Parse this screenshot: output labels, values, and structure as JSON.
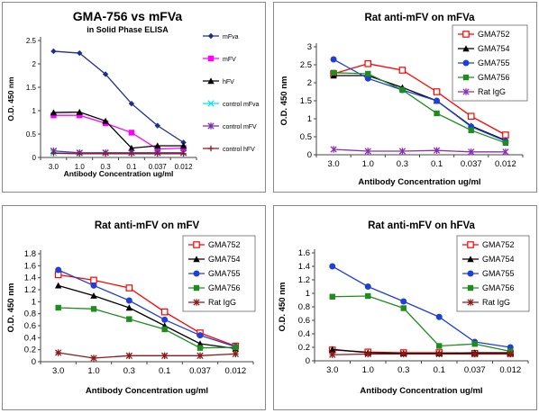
{
  "chart_data": [
    {
      "type": "line",
      "title": "GMA-756 vs mFVa",
      "subtitle": "in Solid Phase ELISA",
      "xlabel": "Antibody Concentration ug/ml",
      "ylabel": "O.D. 450 nm",
      "categories": [
        "3.0",
        "1.0",
        "0.3",
        "0.1",
        "0.037",
        "0.012"
      ],
      "ylim": [
        0,
        2.5
      ],
      "yticks": [
        "0",
        "0.5",
        "1",
        "1.5",
        "2",
        "2.5"
      ],
      "legend_position": "right",
      "series": [
        {
          "name": "mFva",
          "color": "#1f2f8c",
          "marker": "diamond",
          "values": [
            2.27,
            2.23,
            1.78,
            1.15,
            0.68,
            0.32
          ]
        },
        {
          "name": "mFV",
          "color": "#ff00ff",
          "marker": "square",
          "values": [
            0.9,
            0.9,
            0.73,
            0.53,
            0.18,
            0.2
          ]
        },
        {
          "name": "hFV",
          "color": "#000000",
          "marker": "triangle",
          "values": [
            0.96,
            0.97,
            0.78,
            0.2,
            0.25,
            0.25
          ]
        },
        {
          "name": "control mFva",
          "color": "#00e5ee",
          "marker": "x",
          "values": [
            0.1,
            0.09,
            0.1,
            0.1,
            0.1,
            0.1
          ]
        },
        {
          "name": "control mFV",
          "color": "#7b2aa8",
          "marker": "asterisk",
          "values": [
            0.14,
            0.1,
            0.1,
            0.1,
            0.1,
            0.1
          ]
        },
        {
          "name": "control hFV",
          "color": "#8b1a1a",
          "marker": "plus",
          "values": [
            0.09,
            0.08,
            0.08,
            0.08,
            0.08,
            0.08
          ]
        }
      ]
    },
    {
      "type": "line",
      "title": "Rat anti-mFV on mFVa",
      "subtitle": "",
      "xlabel": "Antibody Concentration ug/ml",
      "ylabel": "O.D. 450 nm",
      "categories": [
        "3.0",
        "1.0",
        "0.3",
        "0.1",
        "0.037",
        "0.012"
      ],
      "ylim": [
        0,
        3
      ],
      "yticks": [
        "0",
        "0.5",
        "1",
        "1.5",
        "2",
        "2.5",
        "3"
      ],
      "legend_position": "top-right",
      "series": [
        {
          "name": "GMA752",
          "color": "#ff0000",
          "marker": "open-square",
          "values": [
            2.25,
            2.53,
            2.35,
            1.75,
            1.07,
            0.55
          ]
        },
        {
          "name": "GMA754",
          "color": "#000000",
          "marker": "triangle",
          "values": [
            2.2,
            2.2,
            1.87,
            1.5,
            0.8,
            0.4
          ]
        },
        {
          "name": "GMA755",
          "color": "#1f3fd6",
          "marker": "circle",
          "values": [
            2.65,
            2.12,
            1.8,
            1.5,
            0.78,
            0.38
          ]
        },
        {
          "name": "GMA756",
          "color": "#1e8c1e",
          "marker": "square",
          "values": [
            2.28,
            2.25,
            1.8,
            1.15,
            0.68,
            0.33
          ]
        },
        {
          "name": "Rat IgG",
          "color": "#8b2fb0",
          "marker": "asterisk",
          "values": [
            0.15,
            0.1,
            0.1,
            0.12,
            0.08,
            0.08
          ]
        }
      ]
    },
    {
      "type": "line",
      "title": "Rat anti-mFV on mFV",
      "subtitle": "",
      "xlabel": "Antibody Concentration ug/ml",
      "ylabel": "O.D. 450 nm",
      "categories": [
        "3.0",
        "1.0",
        "0.3",
        "0.1",
        "0.037",
        "0.012"
      ],
      "ylim": [
        0,
        1.8
      ],
      "yticks": [
        "0",
        "0.2",
        "0.4",
        "0.6",
        "0.8",
        "1",
        "1.2",
        "1.4",
        "1.6",
        "1.8"
      ],
      "legend_position": "top-right",
      "series": [
        {
          "name": "GMA752",
          "color": "#ff0000",
          "marker": "open-square",
          "values": [
            1.45,
            1.36,
            1.23,
            0.83,
            0.48,
            0.26
          ]
        },
        {
          "name": "GMA754",
          "color": "#000000",
          "marker": "triangle",
          "values": [
            1.27,
            1.1,
            0.9,
            0.6,
            0.3,
            0.22
          ]
        },
        {
          "name": "GMA755",
          "color": "#1f3fd6",
          "marker": "circle",
          "values": [
            1.53,
            1.27,
            1.02,
            0.7,
            0.44,
            0.25
          ]
        },
        {
          "name": "GMA756",
          "color": "#1e8c1e",
          "marker": "square",
          "values": [
            0.9,
            0.88,
            0.71,
            0.54,
            0.23,
            0.24
          ]
        },
        {
          "name": "Rat IgG",
          "color": "#8b1a1a",
          "marker": "star",
          "values": [
            0.15,
            0.06,
            0.1,
            0.1,
            0.1,
            0.13
          ]
        }
      ]
    },
    {
      "type": "line",
      "title": "Rat anti-mFV on hFVa",
      "subtitle": "",
      "xlabel": "Antibody Concentration ug/ml",
      "ylabel": "O.D. 450 nm",
      "categories": [
        "3.0",
        "1.0",
        "0.3",
        "0.1",
        "0.037",
        "0.012"
      ],
      "ylim": [
        0,
        1.6
      ],
      "yticks": [
        "0",
        "0.2",
        "0.4",
        "0.6",
        "0.8",
        "1",
        "1.2",
        "1.4",
        "1.6"
      ],
      "legend_position": "top-right",
      "series": [
        {
          "name": "GMA752",
          "color": "#ff0000",
          "marker": "open-square",
          "values": [
            0.16,
            0.13,
            0.12,
            0.12,
            0.11,
            0.11
          ]
        },
        {
          "name": "GMA754",
          "color": "#000000",
          "marker": "triangle",
          "values": [
            0.17,
            0.12,
            0.11,
            0.11,
            0.12,
            0.12
          ]
        },
        {
          "name": "GMA755",
          "color": "#1f3fd6",
          "marker": "circle",
          "values": [
            1.4,
            1.1,
            0.88,
            0.65,
            0.28,
            0.2
          ]
        },
        {
          "name": "GMA756",
          "color": "#1e8c1e",
          "marker": "square",
          "values": [
            0.95,
            0.96,
            0.78,
            0.22,
            0.25,
            0.14
          ]
        },
        {
          "name": "Rat IgG",
          "color": "#8b1a1a",
          "marker": "star",
          "values": [
            0.09,
            0.1,
            0.1,
            0.1,
            0.1,
            0.1
          ]
        }
      ]
    }
  ]
}
